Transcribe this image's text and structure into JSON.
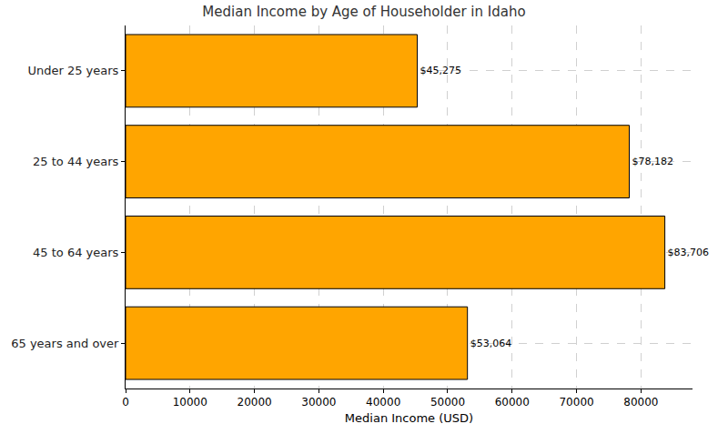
{
  "chart_data": {
    "type": "bar",
    "orientation": "horizontal",
    "title": "Median Income by Age of Householder in Idaho",
    "x_label": "Median Income (USD)",
    "categories": [
      "Under 25 years",
      "25 to 44 years",
      "45 to 64 years",
      "65 years and over"
    ],
    "values": [
      45275,
      78182,
      83706,
      53064
    ],
    "value_labels": [
      "$45,275",
      "$78,182",
      "$83,706",
      "$53,064"
    ],
    "data_labels": true,
    "color": "#ffa500",
    "xlim": [
      0,
      88000
    ],
    "xticks": [
      0,
      10000,
      20000,
      30000,
      40000,
      50000,
      60000,
      70000,
      80000
    ],
    "grid": true
  }
}
